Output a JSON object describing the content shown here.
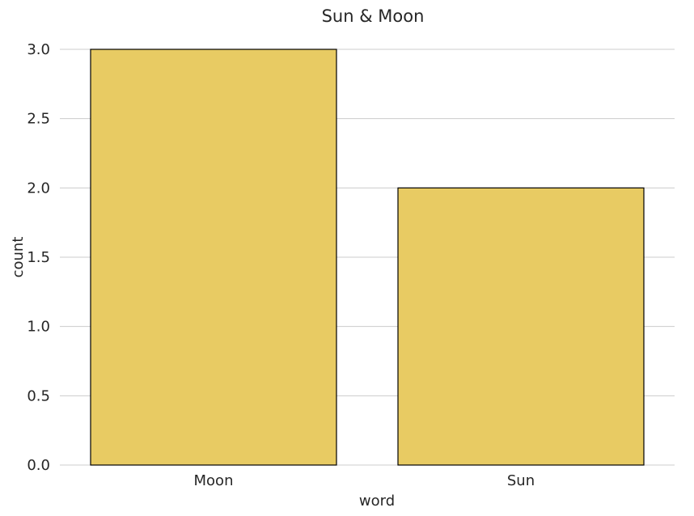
{
  "chart_data": {
    "type": "bar",
    "title": "Sun & Moon",
    "xlabel": "word",
    "ylabel": "count",
    "categories": [
      "Moon",
      "Sun"
    ],
    "values": [
      3,
      2
    ],
    "ylim": [
      0,
      3.0
    ],
    "yticks": [
      "0.0",
      "0.5",
      "1.0",
      "1.5",
      "2.0",
      "2.5",
      "3.0"
    ],
    "bar_color": "#e8cb63",
    "bar_edge_color": "#000000",
    "grid": "y",
    "legend": "none"
  }
}
